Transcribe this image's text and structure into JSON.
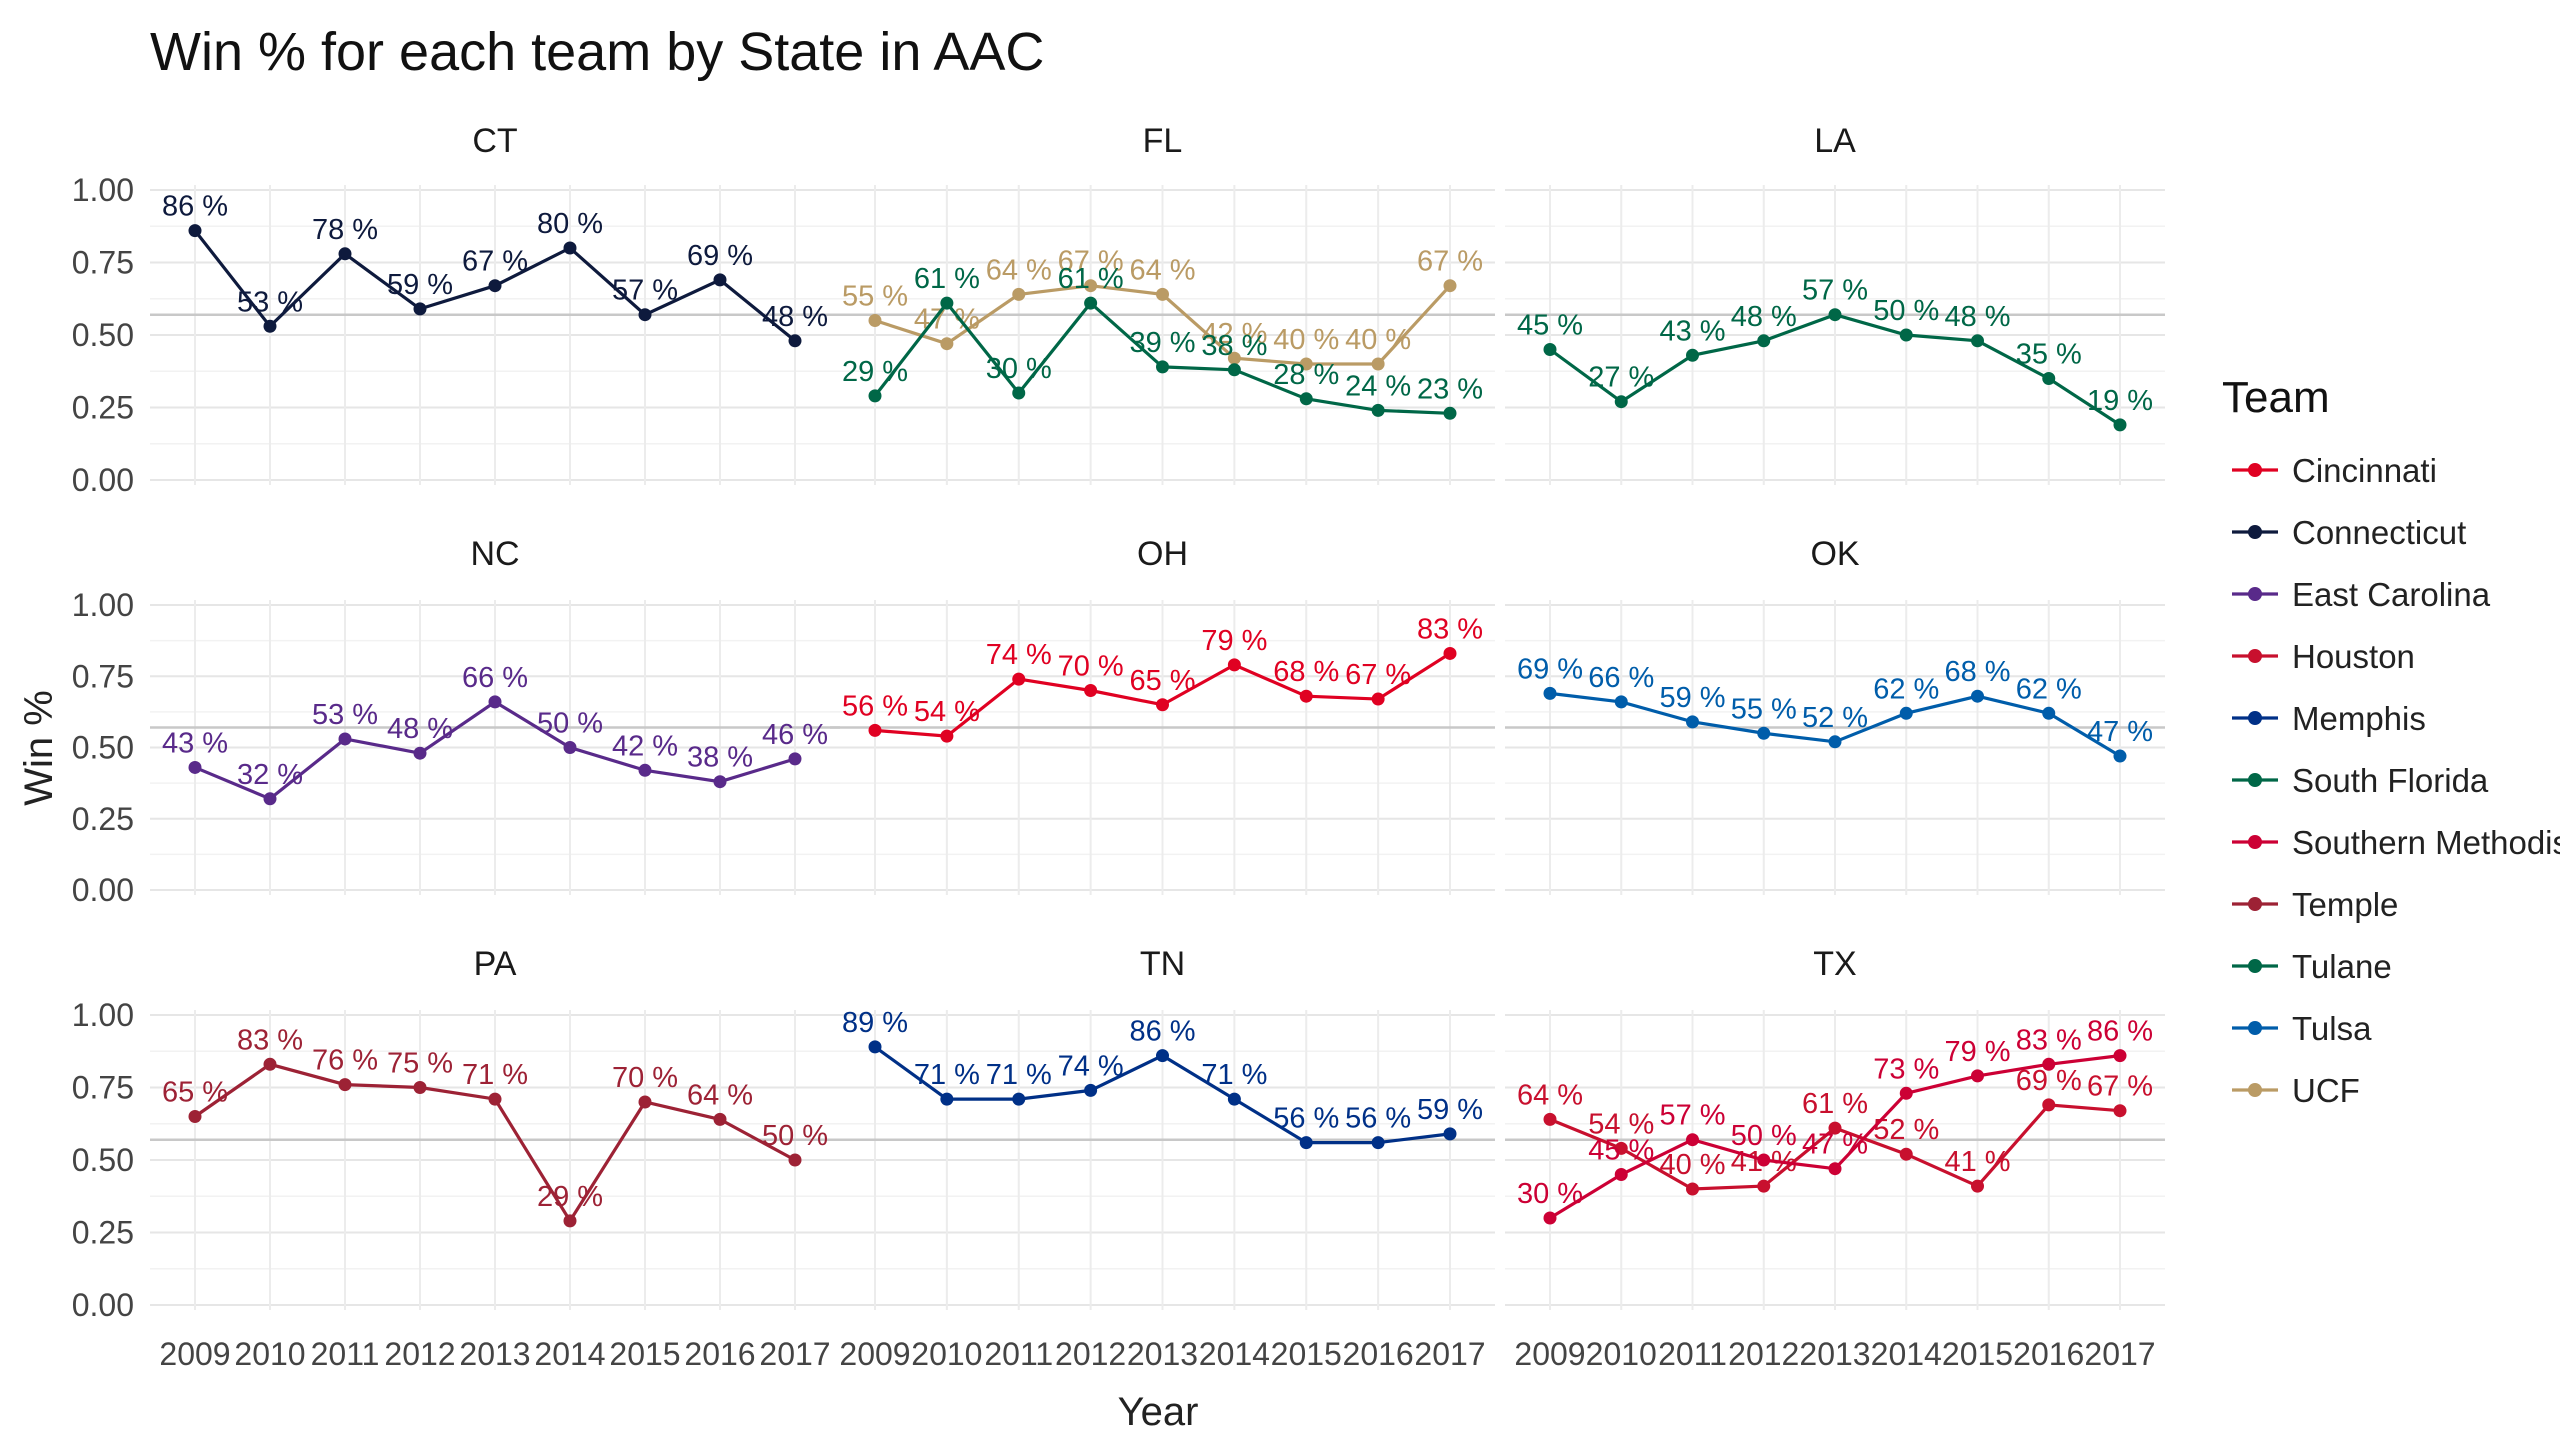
{
  "chart_data": {
    "type": "line",
    "title": "Win % for each team by State in  AAC",
    "xlabel": "Year",
    "ylabel": "Win %",
    "x": [
      2009,
      2010,
      2011,
      2012,
      2013,
      2014,
      2015,
      2016,
      2017
    ],
    "ylim": [
      0,
      1
    ],
    "yticks": [
      "0.00",
      "0.25",
      "0.50",
      "0.75",
      "1.00"
    ],
    "reference_line": 0.57,
    "grid": true,
    "legend": {
      "title": "Team",
      "position": "right",
      "entries": [
        {
          "name": "Cincinnati",
          "color": "#E00122"
        },
        {
          "name": "Connecticut",
          "color": "#0E1A3D"
        },
        {
          "name": "East Carolina",
          "color": "#592A8A"
        },
        {
          "name": "Houston",
          "color": "#C8102E"
        },
        {
          "name": "Memphis",
          "color": "#003087"
        },
        {
          "name": "South Florida",
          "color": "#006747"
        },
        {
          "name": "Southern Methodist",
          "color": "#CC0035"
        },
        {
          "name": "Temple",
          "color": "#9D2235"
        },
        {
          "name": "Tulane",
          "color": "#006747"
        },
        {
          "name": "Tulsa",
          "color": "#005DAA"
        },
        {
          "name": "UCF",
          "color": "#BA9B65"
        }
      ]
    },
    "panels": [
      {
        "state": "CT",
        "series": [
          {
            "team": "Connecticut",
            "color": "#0E1A3D",
            "values": [
              0.86,
              0.53,
              0.78,
              0.59,
              0.67,
              0.8,
              0.57,
              0.69,
              0.48
            ],
            "labels": [
              "86 %",
              "53 %",
              "78 %",
              "59 %",
              "67 %",
              "80 %",
              "57 %",
              "69 %",
              "48 %"
            ]
          }
        ]
      },
      {
        "state": "FL",
        "series": [
          {
            "team": "UCF",
            "color": "#BA9B65",
            "values": [
              0.55,
              0.47,
              0.64,
              0.67,
              0.64,
              0.42,
              0.4,
              0.4,
              0.67
            ],
            "labels": [
              "55 %",
              "47 %",
              "64 %",
              "67 %",
              "64 %",
              "42 %",
              "40 %",
              "40 %",
              "67 %"
            ]
          },
          {
            "team": "South Florida",
            "color": "#006747",
            "values": [
              0.29,
              0.61,
              0.3,
              0.61,
              0.39,
              0.38,
              0.28,
              0.24,
              0.23
            ],
            "labels": [
              "29 %",
              "61 %",
              "30 %",
              "61 %",
              "39 %",
              "38 %",
              "28 %",
              "24 %",
              "23 %"
            ]
          }
        ]
      },
      {
        "state": "LA",
        "series": [
          {
            "team": "Tulane",
            "color": "#006747",
            "values": [
              0.45,
              0.27,
              0.43,
              0.48,
              0.57,
              0.5,
              0.48,
              0.35,
              0.19
            ],
            "labels": [
              "45 %",
              "27 %",
              "43 %",
              "48 %",
              "57 %",
              "50 %",
              "48 %",
              "35 %",
              "19 %"
            ]
          }
        ]
      },
      {
        "state": "NC",
        "series": [
          {
            "team": "East Carolina",
            "color": "#592A8A",
            "values": [
              0.43,
              0.32,
              0.53,
              0.48,
              0.66,
              0.5,
              0.42,
              0.38,
              0.46
            ],
            "labels": [
              "43 %",
              "32 %",
              "53 %",
              "48 %",
              "66 %",
              "50 %",
              "42 %",
              "38 %",
              "46 %"
            ]
          }
        ]
      },
      {
        "state": "OH",
        "series": [
          {
            "team": "Cincinnati",
            "color": "#E00122",
            "values": [
              0.56,
              0.54,
              0.74,
              0.7,
              0.65,
              0.79,
              0.68,
              0.67,
              0.83
            ],
            "labels": [
              "56 %",
              "54 %",
              "74 %",
              "70 %",
              "65 %",
              "79 %",
              "68 %",
              "67 %",
              "83 %"
            ]
          }
        ]
      },
      {
        "state": "OK",
        "series": [
          {
            "team": "Tulsa",
            "color": "#005DAA",
            "values": [
              0.69,
              0.66,
              0.59,
              0.55,
              0.52,
              0.62,
              0.68,
              0.62,
              0.47
            ],
            "labels": [
              "69 %",
              "66 %",
              "59 %",
              "55 %",
              "52 %",
              "62 %",
              "68 %",
              "62 %",
              "47 %"
            ]
          }
        ]
      },
      {
        "state": "PA",
        "series": [
          {
            "team": "Temple",
            "color": "#9D2235",
            "values": [
              0.65,
              0.83,
              0.76,
              0.75,
              0.71,
              0.29,
              0.7,
              0.64,
              0.5
            ],
            "labels": [
              "65 %",
              "83 %",
              "76 %",
              "75 %",
              "71 %",
              "29 %",
              "70 %",
              "64 %",
              "50 %"
            ]
          }
        ]
      },
      {
        "state": "TN",
        "series": [
          {
            "team": "Memphis",
            "color": "#003087",
            "values": [
              0.89,
              0.71,
              0.71,
              0.74,
              0.86,
              0.71,
              0.56,
              0.56,
              0.59
            ],
            "labels": [
              "89 %",
              "71 %",
              "71 %",
              "74 %",
              "86 %",
              "71 %",
              "56 %",
              "56 %",
              "59 %"
            ]
          }
        ]
      },
      {
        "state": "TX",
        "series": [
          {
            "team": "Houston",
            "color": "#C8102E",
            "values": [
              0.64,
              0.54,
              0.4,
              0.41,
              0.61,
              0.52,
              0.41,
              0.69,
              0.67
            ],
            "labels": [
              "64 %",
              "54 %",
              "40 %",
              "41 %",
              "61 %",
              "52 %",
              "41 %",
              "69 %",
              "67 %"
            ]
          },
          {
            "team": "Southern Methodist",
            "color": "#CC0035",
            "values": [
              0.3,
              0.45,
              0.57,
              0.5,
              0.47,
              0.73,
              0.79,
              0.83,
              0.86
            ],
            "labels": [
              "30 %",
              "45 %",
              "57 %",
              "50 %",
              "47 %",
              "73 %",
              "79 %",
              "83 %",
              "86 %"
            ]
          }
        ]
      }
    ]
  }
}
